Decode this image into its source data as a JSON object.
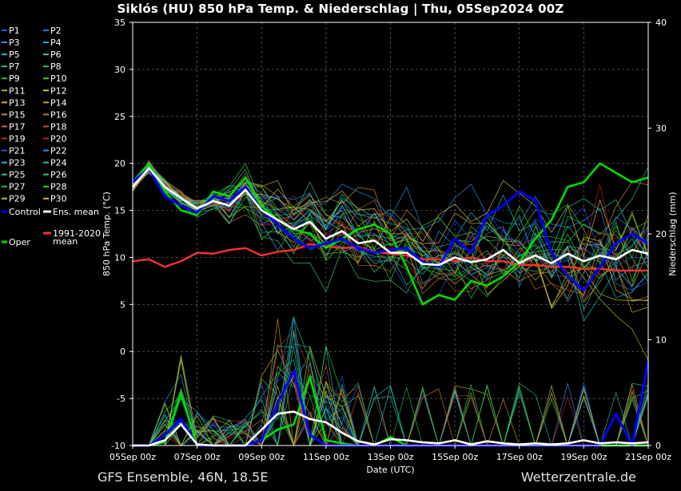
{
  "header": {
    "title": "Siklós  (HU)  850 hPa Temp. & Niederschlag | Thu, 05Sep2024 00Z"
  },
  "footer": {
    "left": "GFS Ensemble, 46N, 18.5E",
    "right": "Wetterzentrale.de"
  },
  "chart_data": {
    "type": "line",
    "xlabel": "Date (UTC)",
    "ylabel": "850 hPa Temp. (°C)",
    "y2label": "Niederschlag (mm)",
    "ylim": [
      -10,
      35
    ],
    "y2lim": [
      0,
      40
    ],
    "x_ticks": [
      "05Sep 00z",
      "07Sep 00z",
      "09Sep 00z",
      "11Sep 00z",
      "13Sep 00z",
      "15Sep 00z",
      "17Sep 00z",
      "19Sep 00z",
      "21Sep 00z"
    ],
    "y_ticks": [
      -10,
      -5,
      0,
      5,
      10,
      15,
      20,
      25,
      30,
      35
    ],
    "y2_ticks": [
      0,
      10,
      20,
      30,
      40
    ],
    "grid": true,
    "legend_position": "left",
    "legend": [
      {
        "label": "P1",
        "color": "#1e50ff"
      },
      {
        "label": "P2",
        "color": "#2a6cff"
      },
      {
        "label": "P3",
        "color": "#3a8cff"
      },
      {
        "label": "P4",
        "color": "#22a8e8"
      },
      {
        "label": "P5",
        "color": "#20c0c8"
      },
      {
        "label": "P6",
        "color": "#22c8a0"
      },
      {
        "label": "P7",
        "color": "#30c878"
      },
      {
        "label": "P8",
        "color": "#28c850"
      },
      {
        "label": "P9",
        "color": "#20c030"
      },
      {
        "label": "P10",
        "color": "#30d020"
      },
      {
        "label": "P11",
        "color": "#a0c020"
      },
      {
        "label": "P12",
        "color": "#c8c820"
      },
      {
        "label": "P13",
        "color": "#d0b030"
      },
      {
        "label": "P14",
        "color": "#d09830"
      },
      {
        "label": "P15",
        "color": "#d08838"
      },
      {
        "label": "P16",
        "color": "#c87830"
      },
      {
        "label": "P17",
        "color": "#c86030"
      },
      {
        "label": "P18",
        "color": "#c04828"
      },
      {
        "label": "P19",
        "color": "#b83020"
      },
      {
        "label": "P20",
        "color": "#c02020"
      },
      {
        "label": "P21",
        "color": "#2050e0"
      },
      {
        "label": "P22",
        "color": "#2890e0"
      },
      {
        "label": "P23",
        "color": "#20b8d0"
      },
      {
        "label": "P24",
        "color": "#20c0b0"
      },
      {
        "label": "P25",
        "color": "#28c890"
      },
      {
        "label": "P26",
        "color": "#30c870"
      },
      {
        "label": "P27",
        "color": "#28c040"
      },
      {
        "label": "P28",
        "color": "#38d030"
      },
      {
        "label": "P29",
        "color": "#b0c030"
      },
      {
        "label": "P30",
        "color": "#d0c040"
      },
      {
        "label": "Control",
        "color": "#0000ff"
      },
      {
        "label": "Ens. mean",
        "color": "#ffffff"
      },
      {
        "label": "1991-2020 mean",
        "color": "#ff3030"
      },
      {
        "label": "Oper",
        "color": "#00dd00"
      }
    ],
    "x_days": [
      0,
      0.5,
      1,
      1.5,
      2,
      2.5,
      3,
      3.5,
      4,
      4.5,
      5,
      5.5,
      6,
      6.5,
      7,
      7.5,
      8,
      8.5,
      9,
      9.5,
      10,
      10.5,
      11,
      11.5,
      12,
      12.5,
      13,
      13.5,
      14,
      14.5,
      15,
      15.5,
      16
    ],
    "series": [
      {
        "name": "Ens. mean",
        "axis": "temp",
        "values": [
          17.5,
          19.5,
          17.5,
          16.3,
          15.2,
          16.0,
          15.5,
          17.2,
          15.0,
          14.0,
          13.0,
          13.8,
          12.0,
          12.8,
          11.5,
          11.8,
          10.5,
          10.5,
          9.3,
          9.2,
          10.0,
          9.5,
          9.8,
          10.8,
          9.4,
          10.2,
          9.4,
          10.4,
          9.6,
          10.2,
          9.8,
          10.8,
          10.4
        ]
      },
      {
        "name": "1991-2020 mean",
        "axis": "temp",
        "values": [
          9.6,
          9.8,
          9.0,
          9.6,
          10.5,
          10.4,
          10.8,
          11.0,
          10.2,
          10.6,
          10.8,
          11.4,
          11.2,
          11.0,
          11.1,
          10.6,
          10.4,
          10.2,
          9.8,
          9.8,
          9.6,
          10.0,
          9.6,
          9.6,
          9.2,
          9.2,
          9.0,
          9.0,
          8.8,
          8.8,
          8.6,
          8.6,
          8.6
        ]
      },
      {
        "name": "Control",
        "axis": "temp",
        "values": [
          18.0,
          19.5,
          16.5,
          15.5,
          14.8,
          16.5,
          16.0,
          17.5,
          15.0,
          13.5,
          12.0,
          11.0,
          11.5,
          12.0,
          11.0,
          10.5,
          10.8,
          11.0,
          9.5,
          9.0,
          12.0,
          10.5,
          14.5,
          15.5,
          17.0,
          16.0,
          10.5,
          8.0,
          6.5,
          9.0,
          11.5,
          12.5,
          11.5
        ]
      },
      {
        "name": "Oper",
        "axis": "temp",
        "values": [
          18.0,
          20.0,
          17.0,
          15.0,
          14.5,
          17.0,
          16.5,
          18.5,
          15.5,
          14.0,
          13.0,
          12.5,
          11.0,
          12.0,
          13.0,
          13.5,
          12.5,
          9.0,
          5.0,
          6.0,
          5.5,
          7.5,
          7.0,
          8.0,
          9.5,
          12.0,
          14.0,
          17.5,
          18.0,
          20.0,
          19.0,
          18.0,
          18.5
        ]
      },
      {
        "name": "Ens. mean",
        "axis": "precip",
        "values": [
          0,
          0,
          0.5,
          2.0,
          0.1,
          0,
          0,
          0,
          1.5,
          3.0,
          3.2,
          2.5,
          2.2,
          1.2,
          0.4,
          0.1,
          0.6,
          0.5,
          0.3,
          0.2,
          0.5,
          0.1,
          0.4,
          0.2,
          0.1,
          0.2,
          0.1,
          0.2,
          0.5,
          0.2,
          0.3,
          0.2,
          0.3
        ]
      },
      {
        "name": "Control",
        "axis": "precip",
        "values": [
          0,
          0,
          1.0,
          2.5,
          0,
          0,
          0,
          0,
          0.5,
          4.0,
          7.0,
          1.0,
          0,
          0,
          0,
          0,
          0,
          0,
          0,
          0,
          0,
          0,
          0,
          0,
          0,
          0,
          0,
          0,
          0,
          0,
          3.0,
          0,
          8.0
        ]
      },
      {
        "name": "Oper",
        "axis": "precip",
        "values": [
          0,
          0,
          0.3,
          5.0,
          0,
          0,
          0,
          0,
          0.5,
          1.5,
          2.0,
          6.5,
          0.5,
          0.2,
          0,
          0,
          0.8,
          0,
          0,
          0,
          0,
          0,
          0,
          0,
          0,
          0,
          0,
          0,
          0,
          0,
          0,
          0,
          0
        ]
      }
    ]
  }
}
